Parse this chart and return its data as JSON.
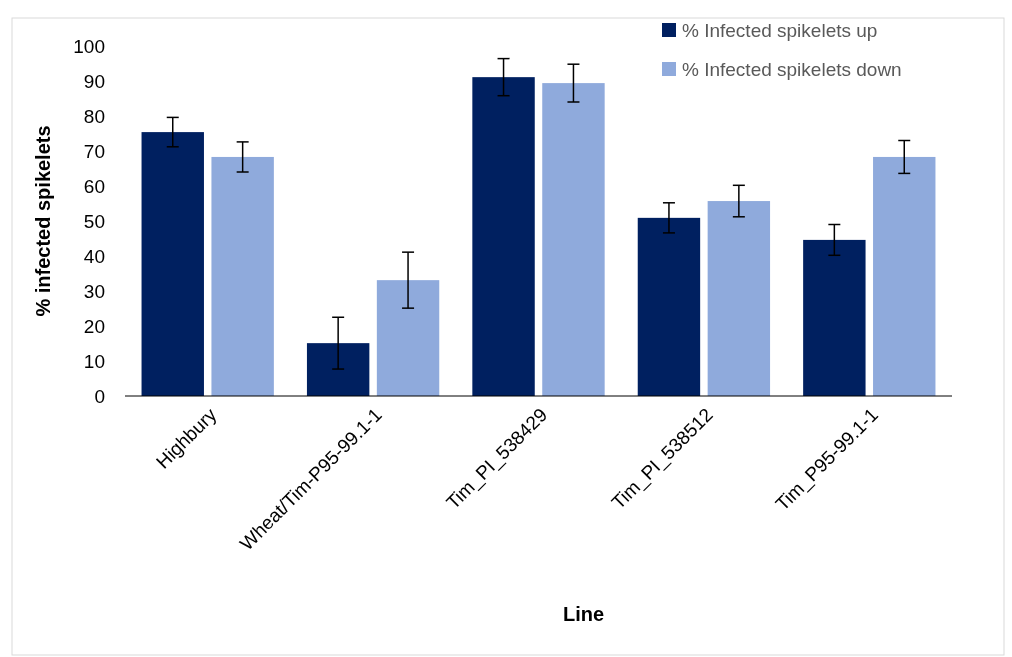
{
  "chart_data": {
    "type": "bar",
    "xlabel": "Line",
    "ylabel": "% infected spikelets",
    "categories": [
      "Highbury",
      "Wheat/Tim-P95-99.1-1",
      "Tim_PI_538429",
      "Tim_PI_538512",
      "Tim_P95-99.1-1"
    ],
    "series": [
      {
        "name": "% Infected spikelets up",
        "color": "#002060",
        "values": [
          75.4,
          15.1,
          91.1,
          50.9,
          44.6
        ],
        "errors": [
          4.2,
          7.4,
          5.3,
          4.3,
          4.4
        ]
      },
      {
        "name": "% Infected spikelets down",
        "color": "#8faadc",
        "values": [
          68.3,
          33.1,
          89.4,
          55.7,
          68.3
        ],
        "errors": [
          4.3,
          8,
          5.4,
          4.5,
          4.7
        ]
      }
    ],
    "ylim": [
      0,
      100
    ],
    "yticks": [
      0,
      10,
      20,
      30,
      40,
      50,
      60,
      70,
      80,
      90,
      100
    ],
    "legend": "top right"
  }
}
